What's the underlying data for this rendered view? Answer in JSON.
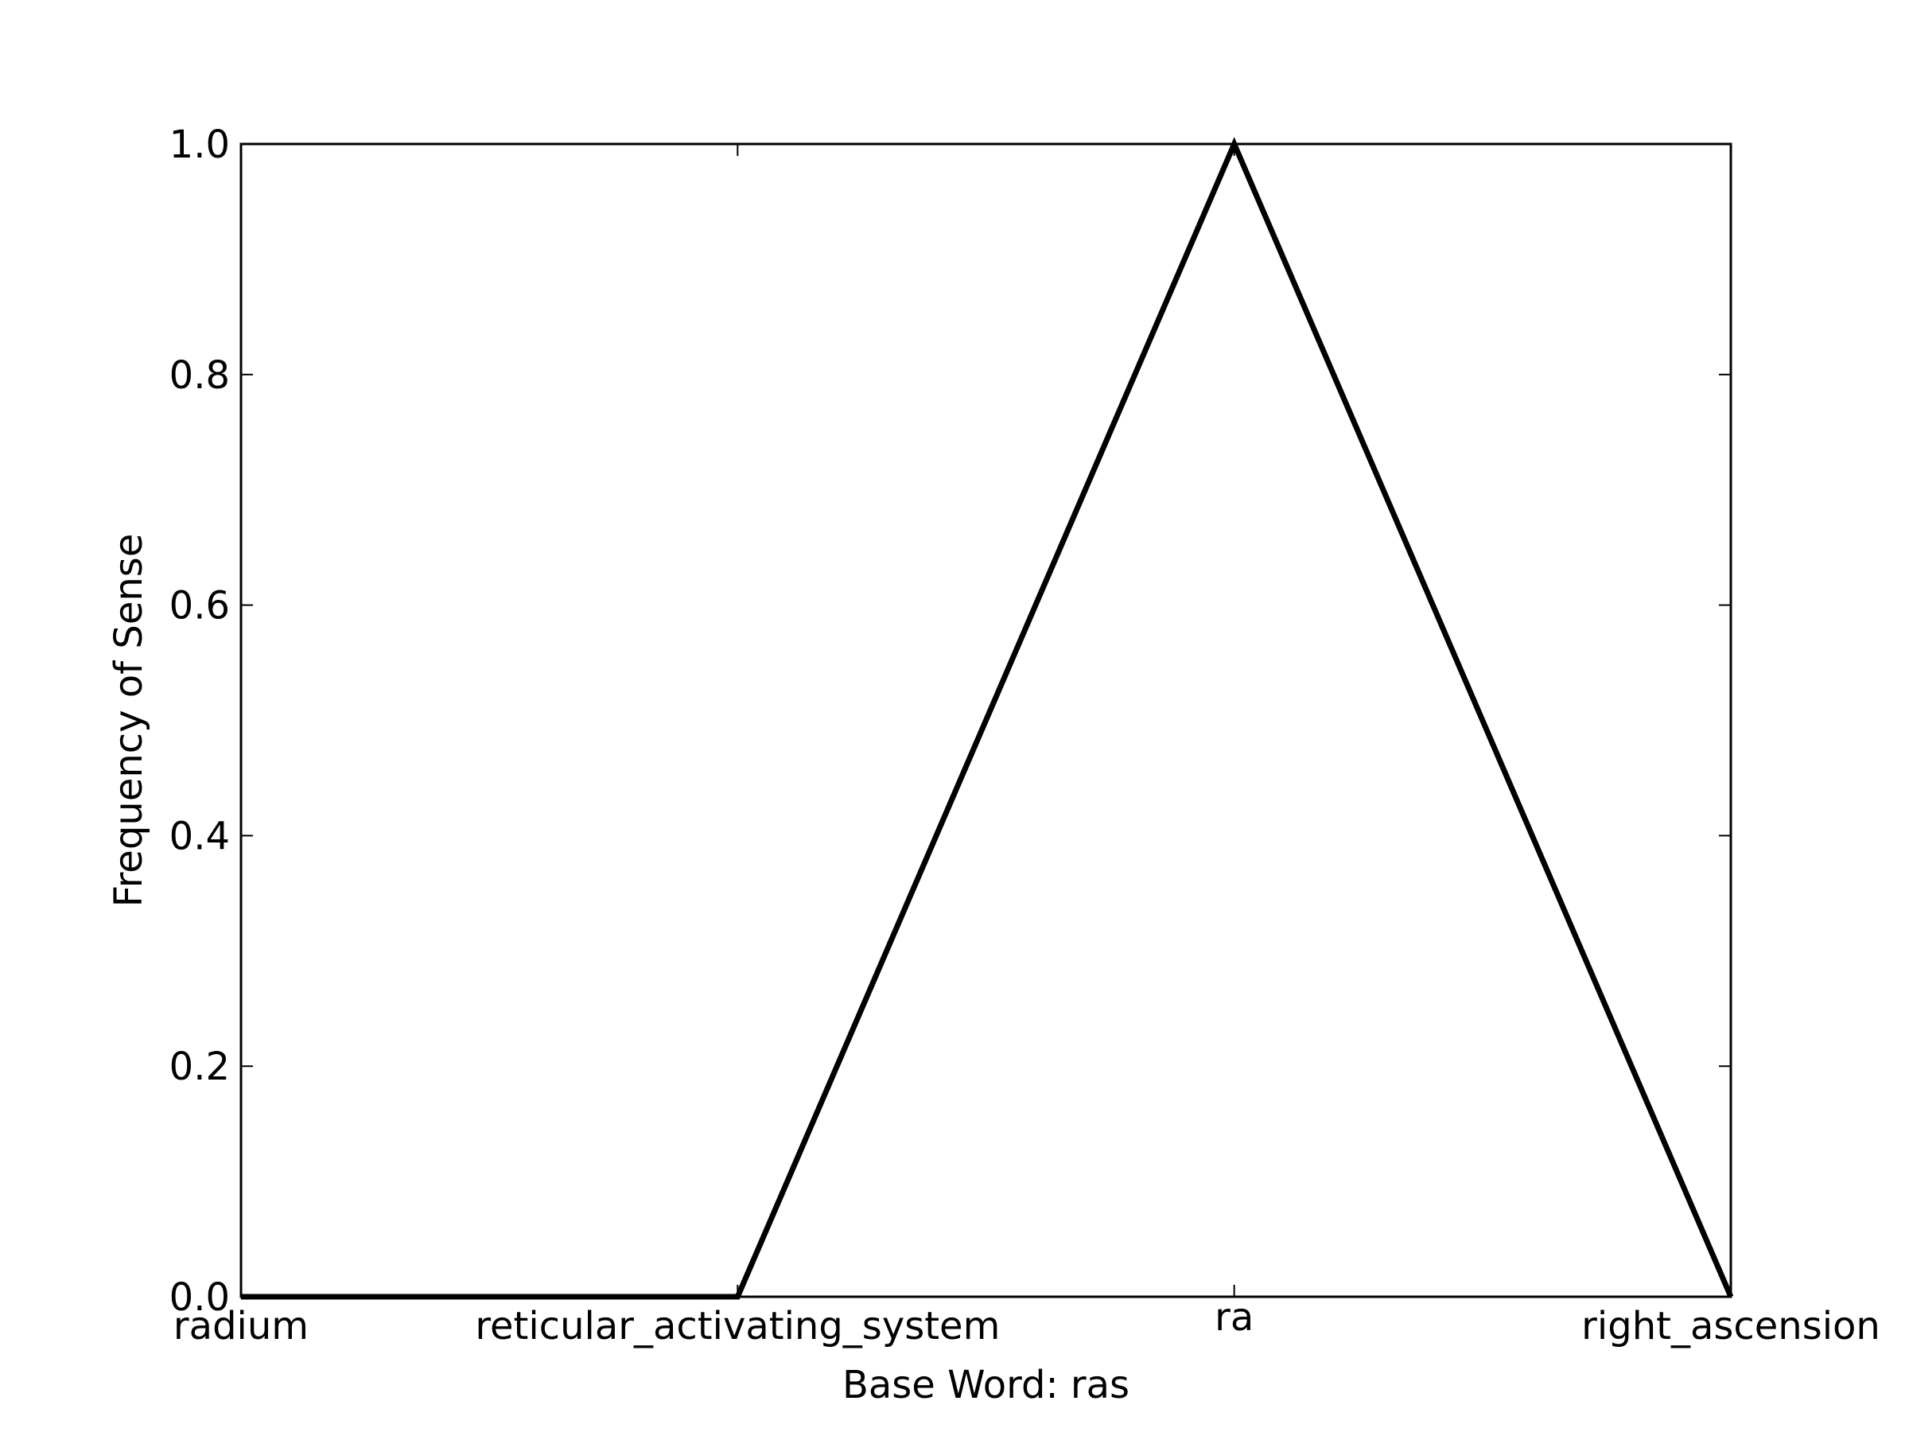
{
  "chart_data": {
    "type": "line",
    "title": "",
    "xlabel": "Base Word: ras",
    "ylabel": "Frequency of Sense",
    "categories": [
      "radium",
      "reticular_activating_system",
      "ra",
      "right_ascension"
    ],
    "series": [
      {
        "values": [
          0.0,
          0.0,
          1.0,
          0.0
        ],
        "color": "#000000"
      }
    ],
    "ylim": [
      0.0,
      1.0
    ],
    "yticks": [
      "0.0",
      "0.2",
      "0.4",
      "0.6",
      "0.8",
      "1.0"
    ],
    "grid": false
  }
}
